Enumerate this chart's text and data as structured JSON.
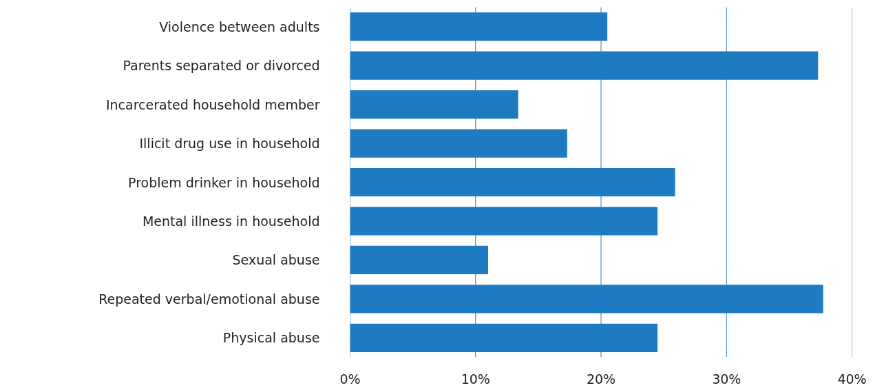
{
  "chart_data": {
    "type": "bar",
    "orientation": "horizontal",
    "categories": [
      "Violence between adults",
      "Parents separated or divorced",
      "Incarcerated household member",
      "Illicit drug use in household",
      "Problem drinker in household",
      "Mental illness in household",
      "Sexual abuse",
      "Repeated verbal/emotional abuse",
      "Physical abuse"
    ],
    "values": [
      20.5,
      37.3,
      13.4,
      17.3,
      25.9,
      24.5,
      11.0,
      37.7,
      24.5
    ],
    "color": "#1f7bc1",
    "xlim": [
      0,
      40
    ],
    "xticks": [
      {
        "value": 0,
        "label": "0%"
      },
      {
        "value": 10,
        "label": "10%"
      },
      {
        "value": 20,
        "label": "20%"
      },
      {
        "value": 30,
        "label": "30%"
      },
      {
        "value": 40,
        "label": "40%"
      }
    ],
    "grid": "x"
  }
}
